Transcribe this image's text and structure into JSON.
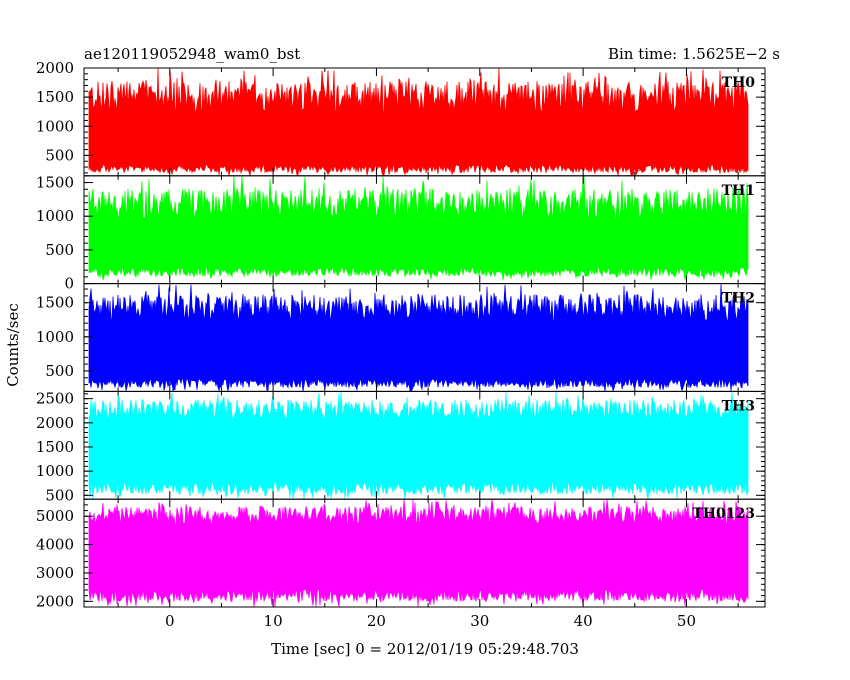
{
  "chart_data": {
    "type": "line",
    "title_left": "ae120119052948_wam0_bst",
    "title_right": "Bin time: 1.5625E−2 s",
    "xlabel": "Time [sec] 0 = 2012/01/19 05:29:48.703",
    "ylabel": "Counts/sec",
    "xlim": [
      -8.3,
      57.6
    ],
    "x_data_range": [
      -7.8,
      56.0
    ],
    "xticks": [
      0,
      10,
      20,
      30,
      40,
      50
    ],
    "panels": [
      {
        "label": "TH0",
        "color": "#ff0000",
        "ylim": [
          150,
          2000
        ],
        "yticks": [
          500,
          1000,
          1500,
          2000
        ],
        "trace_stats": {
          "typical_low": 300,
          "typical_high": 1400,
          "min": 150,
          "max": 2000
        }
      },
      {
        "label": "TH1",
        "color": "#00ff00",
        "ylim": [
          0,
          1600
        ],
        "yticks": [
          0,
          500,
          1000,
          1500
        ],
        "trace_stats": {
          "typical_low": 200,
          "typical_high": 1100,
          "min": 50,
          "max": 1600
        }
      },
      {
        "label": "TH2",
        "color": "#0000ff",
        "ylim": [
          200,
          1780
        ],
        "yticks": [
          500,
          1000,
          1500
        ],
        "trace_stats": {
          "typical_low": 350,
          "typical_high": 1350,
          "min": 200,
          "max": 1780
        }
      },
      {
        "label": "TH3",
        "color": "#00ffff",
        "ylim": [
          420,
          2650
        ],
        "yticks": [
          500,
          1000,
          1500,
          2000,
          2500
        ],
        "trace_stats": {
          "typical_low": 700,
          "typical_high": 2200,
          "min": 420,
          "max": 2650
        }
      },
      {
        "label": "TH0123",
        "color": "#ff00ff",
        "ylim": [
          1800,
          5600
        ],
        "yticks": [
          2000,
          3000,
          4000,
          5000
        ],
        "trace_stats": {
          "typical_low": 2300,
          "typical_high": 4900,
          "min": 1800,
          "max": 5600
        }
      }
    ]
  }
}
